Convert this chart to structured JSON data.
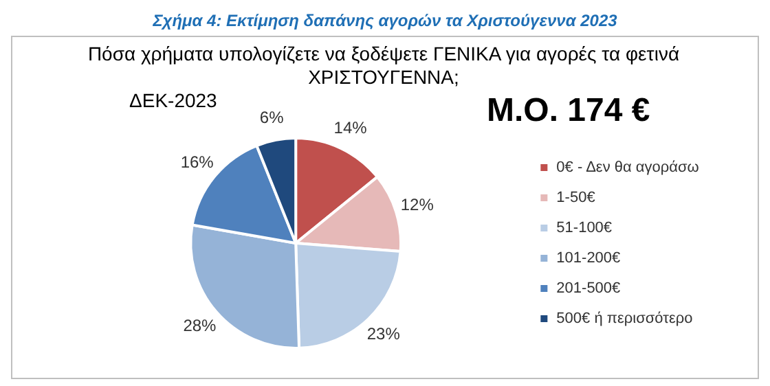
{
  "chart_data": {
    "type": "pie",
    "title": "Σχήμα 4: Εκτίμηση δαπάνης αγορών τα Χριστούγεννα 2023",
    "subtitle": "Πόσα χρήματα υπολογίζετε να ξοδέψετε ΓΕΝΙΚΑ για αγορές τα φετινά ΧΡΙΣΤΟΥΓΕΝΝΑ;",
    "annotations": [
      "ΔΕΚ-2023",
      "Μ.Ο. 174 €"
    ],
    "categories": [
      "0€ - Δεν θα αγοράσω",
      "1-50€",
      "51-100€",
      "101-200€",
      "201-500€",
      "500€ ή περισσότερο"
    ],
    "values": [
      14,
      12,
      23,
      28,
      16,
      6
    ],
    "value_labels": [
      "14%",
      "12%",
      "23%",
      "28%",
      "16%",
      "6%"
    ],
    "colors": [
      "#c0504d",
      "#e6b9b8",
      "#b9cde5",
      "#95b3d7",
      "#4f81bd",
      "#1f497d"
    ],
    "legend": "right"
  }
}
